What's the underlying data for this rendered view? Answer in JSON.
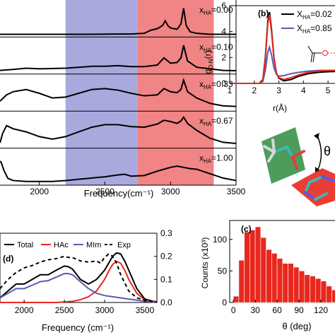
{
  "colors": {
    "blue_band": "#9a9ad8",
    "red_band": "#ee6e6e",
    "total": "#000000",
    "hac": "#e8281e",
    "mim": "#5a5ab4",
    "exp": "#000000",
    "bar": "#e8281e"
  },
  "chart_data": [
    {
      "id": "a",
      "type": "line",
      "xlabel": "Frequency(cm⁻¹)",
      "xlim": [
        1700,
        3500
      ],
      "xticks": [
        2000,
        2500,
        3000,
        3500
      ],
      "bands": [
        {
          "from": 2200,
          "to": 2750,
          "color": "blue"
        },
        {
          "from": 2750,
          "to": 3330,
          "color": "red"
        }
      ],
      "series": [
        {
          "name": "x_HA=0.00",
          "label_sub": "HA",
          "label_val": "=0.00",
          "x": [
            1700,
            1800,
            2000,
            2200,
            2400,
            2600,
            2700,
            2800,
            2850,
            2900,
            2940,
            2960,
            2980,
            3000,
            3050,
            3080,
            3100,
            3120,
            3150,
            3200,
            3300,
            3400,
            3500
          ],
          "y": [
            0.02,
            0.02,
            0.02,
            0.02,
            0.02,
            0.03,
            0.03,
            0.05,
            0.15,
            0.2,
            0.3,
            0.45,
            0.3,
            0.22,
            0.18,
            0.35,
            0.85,
            0.3,
            0.1,
            0.05,
            0.02,
            0.02,
            0.02
          ]
        },
        {
          "name": "x_HA=0.10",
          "label_sub": "HA",
          "label_val": "=0.10",
          "x": [
            1700,
            1800,
            1900,
            2000,
            2200,
            2400,
            2500,
            2600,
            2700,
            2800,
            2900,
            2950,
            3000,
            3050,
            3080,
            3100,
            3130,
            3200,
            3300,
            3400,
            3500
          ],
          "y": [
            0.05,
            0.08,
            0.12,
            0.1,
            0.12,
            0.18,
            0.18,
            0.2,
            0.17,
            0.17,
            0.22,
            0.45,
            0.28,
            0.3,
            0.45,
            0.85,
            0.35,
            0.15,
            0.1,
            0.05,
            0.04
          ]
        },
        {
          "name": "x_HA=0.33",
          "label_sub": "HA",
          "label_val": "=0.33",
          "x": [
            1700,
            1750,
            1800,
            1900,
            2000,
            2100,
            2200,
            2300,
            2400,
            2500,
            2600,
            2700,
            2800,
            2900,
            2950,
            3000,
            3050,
            3080,
            3100,
            3130,
            3200,
            3300,
            3400,
            3500
          ],
          "y": [
            0.25,
            0.45,
            0.55,
            0.62,
            0.5,
            0.35,
            0.38,
            0.5,
            0.62,
            0.65,
            0.6,
            0.5,
            0.42,
            0.45,
            0.65,
            0.55,
            0.52,
            0.62,
            0.92,
            0.55,
            0.35,
            0.18,
            0.1,
            0.08
          ]
        },
        {
          "name": "x_HA=0.67",
          "label_sub": "HA",
          "label_val": "=0.67",
          "x": [
            1700,
            1720,
            1750,
            1800,
            1900,
            2000,
            2100,
            2200,
            2300,
            2400,
            2500,
            2600,
            2700,
            2800,
            2900,
            2950,
            3000,
            3050,
            3080,
            3100,
            3130,
            3200,
            3300,
            3400,
            3500
          ],
          "y": [
            0.1,
            0.4,
            0.65,
            0.55,
            0.45,
            0.3,
            0.22,
            0.3,
            0.45,
            0.6,
            0.68,
            0.68,
            0.62,
            0.6,
            0.7,
            0.82,
            0.78,
            0.72,
            0.8,
            0.92,
            0.72,
            0.5,
            0.25,
            0.12,
            0.08
          ]
        },
        {
          "name": "x_HA=1.00",
          "label_sub": "HA",
          "label_val": "=1.00",
          "x": [
            1700,
            1710,
            1730,
            1760,
            1800,
            1900,
            2000,
            2100,
            2200,
            2300,
            2400,
            2500,
            2600,
            2650,
            2700,
            2800,
            2900,
            3000,
            3050,
            3100,
            3150,
            3200,
            3300,
            3400,
            3500
          ],
          "y": [
            0.7,
            0.65,
            0.4,
            0.15,
            0.08,
            0.05,
            0.05,
            0.05,
            0.08,
            0.12,
            0.16,
            0.2,
            0.26,
            0.28,
            0.22,
            0.24,
            0.38,
            0.5,
            0.54,
            0.5,
            0.46,
            0.44,
            0.3,
            0.16,
            0.08
          ]
        }
      ]
    },
    {
      "id": "b",
      "panel_label": "(b)",
      "type": "line",
      "xlabel": "r(Å)",
      "ylabel": "g",
      "ylabel_sub": "O-N",
      "ylabel_tail": "(r)",
      "xlim": [
        1,
        5.6
      ],
      "ylim": [
        0,
        6
      ],
      "xticks": [
        1,
        2,
        3,
        4,
        5
      ],
      "yticks": [
        0,
        2,
        4,
        6
      ],
      "series": [
        {
          "name": "X_HA=0.02",
          "label_sub": "HA",
          "label_val": "=0.02",
          "color": "#000000",
          "x": [
            1,
            2.2,
            2.35,
            2.45,
            2.55,
            2.62,
            2.7,
            2.8,
            2.9,
            3.0,
            3.2,
            3.5,
            3.8,
            4.2,
            4.6,
            5.0,
            5.6
          ],
          "y": [
            0,
            0,
            0.3,
            2.0,
            4.8,
            5.5,
            4.2,
            2.0,
            0.8,
            0.4,
            0.2,
            0.3,
            0.55,
            0.75,
            0.85,
            0.9,
            0.95
          ]
        },
        {
          "name": "X_HA=0.85",
          "label_sub": "HA",
          "label_val": "=0.85",
          "color": "#5a5ab4",
          "x": [
            1,
            2.2,
            2.35,
            2.45,
            2.55,
            2.62,
            2.7,
            2.8,
            2.9,
            3.0,
            3.2,
            3.5,
            3.8,
            4.2,
            4.6,
            5.0,
            5.6
          ],
          "y": [
            0,
            0,
            0.15,
            1.0,
            2.4,
            2.8,
            2.2,
            1.2,
            0.7,
            0.55,
            0.6,
            0.75,
            0.85,
            0.95,
            1.0,
            1.0,
            1.0
          ]
        },
        {
          "color": "#e8281e",
          "x": [
            1,
            2.2,
            2.35,
            2.45,
            2.55,
            2.62,
            2.7,
            2.8,
            2.9,
            3.0,
            3.2,
            3.5,
            3.8,
            4.2,
            4.6,
            5.0,
            5.6
          ],
          "y": [
            0,
            0,
            0.25,
            1.8,
            4.6,
            5.3,
            4.0,
            1.9,
            0.8,
            0.45,
            0.3,
            0.45,
            0.65,
            0.85,
            0.95,
            1.0,
            1.0
          ]
        }
      ]
    },
    {
      "id": "c",
      "panel_label": "(c)",
      "type": "bar",
      "xlabel": "θ (deg)",
      "ylabel": "Counts (x10³)",
      "xlim": [
        -5,
        150
      ],
      "ylim": [
        0,
        130
      ],
      "xticks": [
        0,
        30,
        60,
        90,
        120
      ],
      "yticks": [
        0,
        50,
        100
      ],
      "bin_width": 7.5,
      "bin_starts": [
        0,
        7.5,
        15,
        22.5,
        30,
        37.5,
        45,
        52.5,
        60,
        67.5,
        75,
        82.5,
        90,
        97.5,
        105,
        112.5,
        120,
        127.5,
        135,
        142.5
      ],
      "values": [
        10,
        67,
        112,
        115,
        120,
        103,
        84,
        78,
        70,
        62,
        62,
        56,
        50,
        44,
        42,
        38,
        34,
        26,
        20,
        12
      ]
    },
    {
      "id": "d",
      "panel_label": "(d)",
      "type": "line",
      "xlabel": "Frequency (cm⁻¹)",
      "xlim": [
        1700,
        3650
      ],
      "ylim": [
        0,
        0.3
      ],
      "xticks": [
        2000,
        2500,
        3000,
        3500
      ],
      "y2ticks": [
        "0.0",
        "0.1",
        "0.2",
        "0.3"
      ],
      "y2tick_values": [
        0.0,
        0.1,
        0.2,
        0.3
      ],
      "series": [
        {
          "name": "Total",
          "color": "#000000",
          "dash": "",
          "x": [
            1700,
            1800,
            1900,
            2000,
            2100,
            2200,
            2300,
            2400,
            2500,
            2550,
            2600,
            2700,
            2800,
            2900,
            3000,
            3050,
            3100,
            3150,
            3200,
            3250,
            3300,
            3400,
            3500,
            3600,
            3650
          ],
          "y": [
            0.02,
            0.05,
            0.08,
            0.08,
            0.1,
            0.12,
            0.12,
            0.14,
            0.158,
            0.155,
            0.145,
            0.1,
            0.08,
            0.1,
            0.14,
            0.17,
            0.2,
            0.215,
            0.21,
            0.18,
            0.14,
            0.06,
            0.015,
            0.005,
            0.003
          ]
        },
        {
          "name": "HAc",
          "color": "#e8281e",
          "dash": "",
          "x": [
            1700,
            2000,
            2400,
            2600,
            2700,
            2800,
            2900,
            3000,
            3050,
            3100,
            3150,
            3200,
            3250,
            3300,
            3400,
            3500,
            3600,
            3650
          ],
          "y": [
            0,
            0,
            0,
            0.005,
            0.012,
            0.025,
            0.05,
            0.1,
            0.135,
            0.165,
            0.178,
            0.17,
            0.14,
            0.1,
            0.04,
            0.01,
            0.002,
            0.001
          ]
        },
        {
          "name": "MIm",
          "color": "#5a5ab4",
          "dash": "",
          "x": [
            1700,
            1800,
            1900,
            2000,
            2100,
            2200,
            2300,
            2400,
            2500,
            2550,
            2600,
            2700,
            2800,
            2900,
            3000,
            3100,
            3200,
            3300,
            3400,
            3500,
            3650
          ],
          "y": [
            0.02,
            0.04,
            0.06,
            0.06,
            0.075,
            0.09,
            0.095,
            0.11,
            0.125,
            0.125,
            0.12,
            0.09,
            0.06,
            0.04,
            0.03,
            0.025,
            0.02,
            0.015,
            0.01,
            0.005,
            0.002
          ]
        },
        {
          "name": "Exp",
          "color": "#000000",
          "dash": "5,4",
          "x": [
            1700,
            1800,
            1900,
            2000,
            2100,
            2200,
            2300,
            2400,
            2500,
            2550,
            2600,
            2700,
            2800,
            2900,
            2950,
            3000,
            3050,
            3100,
            3150,
            3200,
            3300,
            3400,
            3500,
            3600,
            3650
          ],
          "y": [
            0.06,
            0.1,
            0.13,
            0.15,
            0.16,
            0.175,
            0.185,
            0.19,
            0.2,
            0.195,
            0.195,
            0.18,
            0.175,
            0.18,
            0.17,
            0.195,
            0.21,
            0.2,
            0.17,
            0.12,
            0.05,
            0.02,
            0.01,
            0.005,
            0.003
          ]
        }
      ]
    }
  ]
}
